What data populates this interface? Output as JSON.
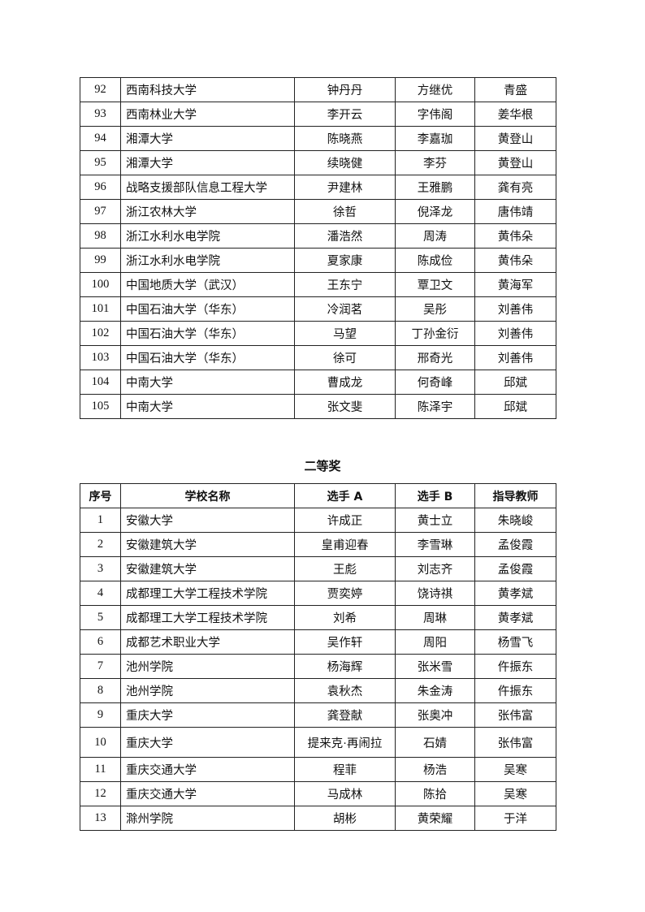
{
  "table1": {
    "rows": [
      [
        "92",
        "西南科技大学",
        "钟丹丹",
        "方继优",
        "青盛"
      ],
      [
        "93",
        "西南林业大学",
        "李开云",
        "字伟阁",
        "姜华根"
      ],
      [
        "94",
        "湘潭大学",
        "陈晓燕",
        "李嘉珈",
        "黄登山"
      ],
      [
        "95",
        "湘潭大学",
        "续晓健",
        "李芬",
        "黄登山"
      ],
      [
        "96",
        "战略支援部队信息工程大学",
        "尹建林",
        "王雅鹏",
        "龚有亮"
      ],
      [
        "97",
        "浙江农林大学",
        "徐哲",
        "倪泽龙",
        "唐伟靖"
      ],
      [
        "98",
        "浙江水利水电学院",
        "潘浩然",
        "周涛",
        "黄伟朵"
      ],
      [
        "99",
        "浙江水利水电学院",
        "夏家康",
        "陈成俭",
        "黄伟朵"
      ],
      [
        "100",
        "中国地质大学（武汉）",
        "王东宁",
        "覃卫文",
        "黄海军"
      ],
      [
        "101",
        "中国石油大学（华东）",
        "冷润茗",
        "吴彤",
        "刘善伟"
      ],
      [
        "102",
        "中国石油大学（华东）",
        "马望",
        "丁孙金衍",
        "刘善伟"
      ],
      [
        "103",
        "中国石油大学（华东）",
        "徐可",
        "邢奇光",
        "刘善伟"
      ],
      [
        "104",
        "中南大学",
        "曹成龙",
        "何奇峰",
        "邱斌"
      ],
      [
        "105",
        "中南大学",
        "张文斐",
        "陈泽宇",
        "邱斌"
      ]
    ]
  },
  "section2": {
    "title": "二等奖",
    "headers": [
      "序号",
      "学校名称",
      "选手 A",
      "选手 B",
      "指导教师"
    ],
    "rows": [
      [
        "1",
        "安徽大学",
        "许成正",
        "黄士立",
        "朱晓峻"
      ],
      [
        "2",
        "安徽建筑大学",
        "皇甫迎春",
        "李雪琳",
        "孟俊霞"
      ],
      [
        "3",
        "安徽建筑大学",
        "王彪",
        "刘志齐",
        "孟俊霞"
      ],
      [
        "4",
        "成都理工大学工程技术学院",
        "贾奕婷",
        "饶诗祺",
        "黄孝斌"
      ],
      [
        "5",
        "成都理工大学工程技术学院",
        "刘希",
        "周琳",
        "黄孝斌"
      ],
      [
        "6",
        "成都艺术职业大学",
        "吴作轩",
        "周阳",
        "杨雪飞"
      ],
      [
        "7",
        "池州学院",
        "杨海辉",
        "张米雪",
        "仵振东"
      ],
      [
        "8",
        "池州学院",
        "袁秋杰",
        "朱金涛",
        "仵振东"
      ],
      [
        "9",
        "重庆大学",
        "龚登献",
        "张奥冲",
        "张伟富"
      ],
      [
        "10",
        "重庆大学",
        "提来克·再闹拉",
        "石婧",
        "张伟富"
      ],
      [
        "11",
        "重庆交通大学",
        "程菲",
        "杨浩",
        "吴寒"
      ],
      [
        "12",
        "重庆交通大学",
        "马成林",
        "陈拾",
        "吴寒"
      ],
      [
        "13",
        "滁州学院",
        "胡彬",
        "黄荣耀",
        "于洋"
      ]
    ]
  }
}
